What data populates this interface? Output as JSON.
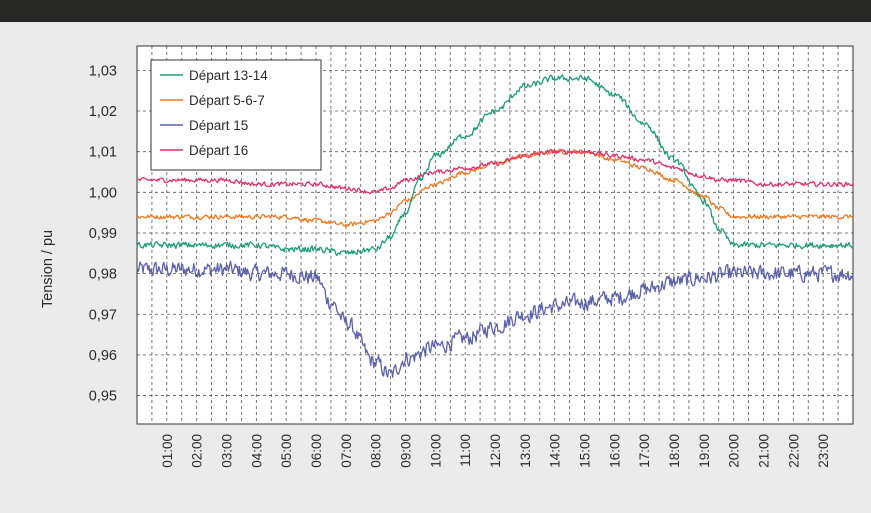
{
  "chart_data": {
    "type": "line",
    "title": "",
    "xlabel": "",
    "ylabel": "Tension / pu",
    "ylim": [
      0.943,
      1.036
    ],
    "xlim": [
      0,
      24
    ],
    "grid": true,
    "legend_position": "top-left",
    "y_ticks": [
      0.95,
      0.96,
      0.97,
      0.98,
      0.99,
      1.0,
      1.01,
      1.02,
      1.03
    ],
    "y_tick_labels": [
      "0,95",
      "0,96",
      "0,97",
      "0,98",
      "0,99",
      "1,00",
      "1,01",
      "1,02",
      "1,03"
    ],
    "x_ticks": [
      1,
      2,
      3,
      4,
      5,
      6,
      7,
      8,
      9,
      10,
      11,
      12,
      13,
      14,
      15,
      16,
      17,
      18,
      19,
      20,
      21,
      22,
      23
    ],
    "x_tick_labels": [
      "01:00",
      "02:00",
      "03:00",
      "04:00",
      "05:00",
      "06:00",
      "07:00",
      "08:00",
      "09:00",
      "10:00",
      "11:00",
      "12:00",
      "13:00",
      "14:00",
      "15:00",
      "16:00",
      "17:00",
      "18:00",
      "19:00",
      "20:00",
      "21:00",
      "22:00",
      "23:00"
    ],
    "x_unit": "hours",
    "series": [
      {
        "name": "Départ 13-14",
        "color": "#1e9e7c",
        "noise": 0.0007,
        "x": [
          0,
          1,
          2,
          3,
          4,
          5,
          6,
          7,
          8,
          8.5,
          9,
          9.5,
          10,
          11,
          12,
          13,
          14,
          15,
          16,
          17,
          18,
          19,
          19.5,
          20,
          21,
          22,
          23,
          24
        ],
        "y": [
          0.987,
          0.987,
          0.987,
          0.987,
          0.987,
          0.986,
          0.986,
          0.985,
          0.986,
          0.989,
          0.995,
          1.003,
          1.009,
          1.014,
          1.02,
          1.026,
          1.028,
          1.028,
          1.024,
          1.017,
          1.008,
          0.998,
          0.991,
          0.987,
          0.987,
          0.987,
          0.987,
          0.987
        ]
      },
      {
        "name": "Départ 5-6-7",
        "color": "#f07a21",
        "noise": 0.0005,
        "x": [
          0,
          1,
          2,
          3,
          4,
          5,
          6,
          7,
          8,
          8.5,
          9,
          10,
          11,
          12,
          13,
          14,
          15,
          16,
          17,
          18,
          19,
          19.5,
          20,
          21,
          22,
          23,
          24
        ],
        "y": [
          0.994,
          0.994,
          0.994,
          0.994,
          0.994,
          0.994,
          0.993,
          0.992,
          0.993,
          0.995,
          0.998,
          1.002,
          1.005,
          1.007,
          1.009,
          1.01,
          1.01,
          1.008,
          1.006,
          1.003,
          0.999,
          0.996,
          0.994,
          0.994,
          0.994,
          0.994,
          0.994
        ]
      },
      {
        "name": "Départ 15",
        "color": "#5c61ab",
        "noise": 0.0018,
        "x": [
          0,
          1,
          2,
          3,
          4,
          5,
          6,
          6.5,
          7,
          8,
          8.5,
          9,
          10,
          11,
          12,
          13,
          14,
          15,
          16,
          17,
          18,
          19,
          20,
          21,
          22,
          23,
          24
        ],
        "y": [
          0.981,
          0.981,
          0.981,
          0.981,
          0.98,
          0.98,
          0.979,
          0.973,
          0.968,
          0.958,
          0.955,
          0.959,
          0.962,
          0.964,
          0.967,
          0.97,
          0.972,
          0.973,
          0.974,
          0.976,
          0.978,
          0.979,
          0.98,
          0.98,
          0.98,
          0.98,
          0.98
        ]
      },
      {
        "name": "Départ 16",
        "color": "#e3306e",
        "noise": 0.0005,
        "x": [
          0,
          1,
          2,
          3,
          4,
          5,
          6,
          7,
          8,
          8.5,
          9,
          10,
          11,
          12,
          13,
          14,
          15,
          16,
          17,
          18,
          19,
          19.5,
          20,
          21,
          22,
          23,
          24
        ],
        "y": [
          1.003,
          1.003,
          1.003,
          1.003,
          1.002,
          1.002,
          1.002,
          1.001,
          1.0,
          1.001,
          1.003,
          1.005,
          1.006,
          1.007,
          1.009,
          1.01,
          1.01,
          1.009,
          1.008,
          1.006,
          1.004,
          1.003,
          1.003,
          1.002,
          1.002,
          1.002,
          1.002
        ]
      }
    ]
  }
}
